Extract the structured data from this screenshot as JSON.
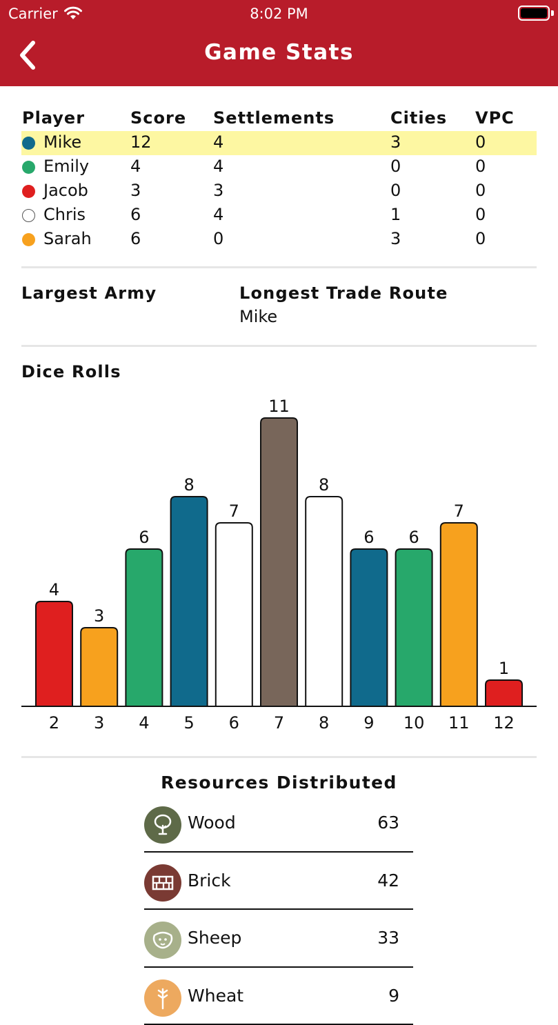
{
  "status_bar": {
    "carrier": "Carrier",
    "time": "8:02 PM"
  },
  "nav": {
    "title": "Game Stats"
  },
  "players_table": {
    "headers": {
      "player": "Player",
      "score": "Score",
      "settlements": "Settlements",
      "cities": "Cities",
      "vpc": "VPC"
    },
    "rows": [
      {
        "name": "Mike",
        "score": "12",
        "settlements": "4",
        "cities": "3",
        "vpc": "0",
        "color": "#106a8c",
        "highlight": true
      },
      {
        "name": "Emily",
        "score": "4",
        "settlements": "4",
        "cities": "0",
        "vpc": "0",
        "color": "#27a86b",
        "highlight": false
      },
      {
        "name": "Jacob",
        "score": "3",
        "settlements": "3",
        "cities": "0",
        "vpc": "0",
        "color": "#df1f1f",
        "highlight": false
      },
      {
        "name": "Chris",
        "score": "6",
        "settlements": "4",
        "cities": "1",
        "vpc": "0",
        "color": "#ffffff",
        "highlight": false
      },
      {
        "name": "Sarah",
        "score": "6",
        "settlements": "0",
        "cities": "3",
        "vpc": "0",
        "color": "#f7a11e",
        "highlight": false
      }
    ]
  },
  "awards": {
    "largest_army": {
      "label": "Largest Army",
      "value": ""
    },
    "longest_route": {
      "label": "Longest Trade Route",
      "value": "Mike"
    }
  },
  "dice_section_title": "Dice Rolls",
  "chart_data": {
    "type": "bar",
    "categories": [
      "2",
      "3",
      "4",
      "5",
      "6",
      "7",
      "8",
      "9",
      "10",
      "11",
      "12"
    ],
    "values": [
      4,
      3,
      6,
      8,
      7,
      11,
      8,
      6,
      6,
      7,
      1
    ],
    "bar_colors": [
      "#df1f1f",
      "#f7a11e",
      "#27a86b",
      "#106a8c",
      "#ffffff",
      "#78665a",
      "#ffffff",
      "#106a8c",
      "#27a86b",
      "#f7a11e",
      "#df1f1f"
    ],
    "title": "Dice Rolls",
    "xlabel": "",
    "ylabel": "",
    "ylim": [
      0,
      11
    ],
    "grid": false
  },
  "resources": {
    "title": "Resources Distributed",
    "items": [
      {
        "name": "Wood",
        "count": "63",
        "icon": "tree-icon",
        "color": "#5e6a48"
      },
      {
        "name": "Brick",
        "count": "42",
        "icon": "brick-icon",
        "color": "#7a3a33"
      },
      {
        "name": "Sheep",
        "count": "33",
        "icon": "sheep-icon",
        "color": "#a7b08a"
      },
      {
        "name": "Wheat",
        "count": "9",
        "icon": "wheat-icon",
        "color": "#eda95f"
      }
    ]
  }
}
